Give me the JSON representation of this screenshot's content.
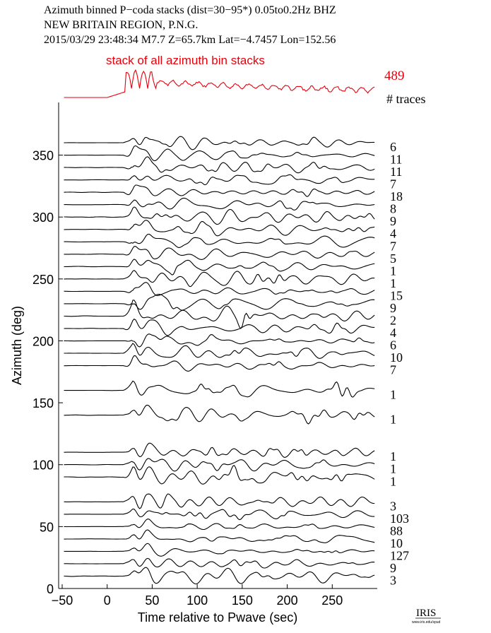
{
  "header": {
    "line1": "Azimuth binned P−coda stacks (dist=30−95*)  0.05to0.2Hz  BHZ",
    "line2": "NEW BRITAIN REGION, P.N.G.",
    "line3": "2015/03/29  23:48:34  M7.7  Z=65.7km Lat=−4.7457 Lon=152.56"
  },
  "colors": {
    "stack": "#e8000b",
    "traces": "#000000",
    "axis": "#000000"
  },
  "chart_data": {
    "type": "line",
    "xlabel": "Time relative to Pwave (sec)",
    "ylabel": "Azimuth (deg)",
    "xlim": [
      -50,
      300
    ],
    "ylim": [
      0,
      380
    ],
    "xticks": [
      -50,
      0,
      50,
      100,
      150,
      200,
      250
    ],
    "yticks": [
      0,
      50,
      100,
      150,
      200,
      250,
      300,
      350
    ],
    "grid": false,
    "top_stack": {
      "label": "stack of all azimuth bin stacks",
      "count": "489",
      "count_header": "# traces"
    },
    "series": [
      {
        "azimuth": 360,
        "count": "6"
      },
      {
        "azimuth": 350,
        "count": "11"
      },
      {
        "azimuth": 340,
        "count": "11"
      },
      {
        "azimuth": 330,
        "count": "7"
      },
      {
        "azimuth": 320,
        "count": "18"
      },
      {
        "azimuth": 310,
        "count": "8"
      },
      {
        "azimuth": 300,
        "count": "9"
      },
      {
        "azimuth": 290,
        "count": "4"
      },
      {
        "azimuth": 280,
        "count": "7"
      },
      {
        "azimuth": 270,
        "count": "5"
      },
      {
        "azimuth": 260,
        "count": "1"
      },
      {
        "azimuth": 250,
        "count": "1"
      },
      {
        "azimuth": 240,
        "count": "15"
      },
      {
        "azimuth": 230,
        "count": "9"
      },
      {
        "azimuth": 220,
        "count": "2"
      },
      {
        "azimuth": 210,
        "count": "4"
      },
      {
        "azimuth": 200,
        "count": "6"
      },
      {
        "azimuth": 190,
        "count": "10"
      },
      {
        "azimuth": 180,
        "count": "7"
      },
      {
        "azimuth": 160,
        "count": "1"
      },
      {
        "azimuth": 140,
        "count": "1"
      },
      {
        "azimuth": 110,
        "count": "1"
      },
      {
        "azimuth": 100,
        "count": "1"
      },
      {
        "azimuth": 90,
        "count": "1"
      },
      {
        "azimuth": 70,
        "count": "3"
      },
      {
        "azimuth": 60,
        "count": "103"
      },
      {
        "azimuth": 50,
        "count": "88"
      },
      {
        "azimuth": 40,
        "count": "10"
      },
      {
        "azimuth": 30,
        "count": "127"
      },
      {
        "azimuth": 20,
        "count": "9"
      },
      {
        "azimuth": 10,
        "count": "3"
      }
    ]
  },
  "logo": {
    "text": "IRIS",
    "subtext": "www.iris.edu/spud"
  }
}
